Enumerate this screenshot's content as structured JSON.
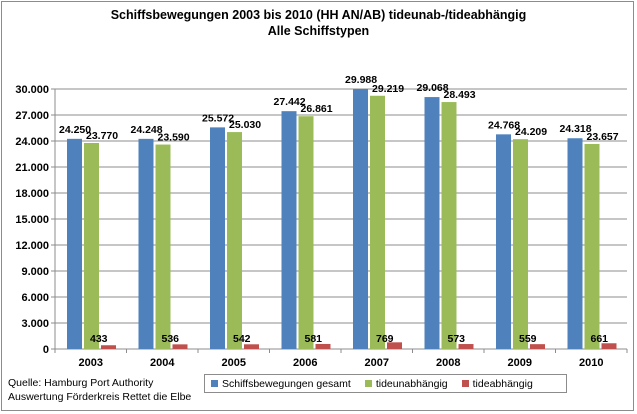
{
  "chart_data": {
    "type": "bar",
    "title": "Schiffsbewegungen  2003 bis 2010 (HH AN/AB) tideunab-/tideabhängig",
    "subtitle": "Alle Schiffstypen",
    "categories": [
      "2003",
      "2004",
      "2005",
      "2006",
      "2007",
      "2008",
      "2009",
      "2010"
    ],
    "series": [
      {
        "name": "Schiffsbewegungen gesamt",
        "color": "#4f81bd",
        "values": [
          24250,
          24248,
          25572,
          27442,
          29988,
          29068,
          24768,
          24318
        ],
        "labels": [
          "24.250",
          "24.248",
          "25.572",
          "27.442",
          "29.988",
          "29.068",
          "24.768",
          "24.318"
        ]
      },
      {
        "name": "tideunabhängig",
        "color": "#9bbb59",
        "values": [
          23770,
          23590,
          25030,
          26861,
          29219,
          28493,
          24209,
          23657
        ],
        "labels": [
          "23.770",
          "23.590",
          "25.030",
          "26.861",
          "29.219",
          "28.493",
          "24.209",
          "23.657"
        ]
      },
      {
        "name": "tideabhängig",
        "color": "#c0504d",
        "values": [
          433,
          536,
          542,
          581,
          769,
          573,
          559,
          661
        ],
        "labels": [
          "433",
          "536",
          "542",
          "581",
          "769",
          "573",
          "559",
          "661"
        ]
      }
    ],
    "ylim": [
      0,
      30000
    ],
    "yticks": [
      0,
      3000,
      6000,
      9000,
      12000,
      15000,
      18000,
      21000,
      24000,
      27000,
      30000
    ],
    "ytick_labels": [
      "0",
      "3.000",
      "6.000",
      "9.000",
      "12.000",
      "15.000",
      "18.000",
      "21.000",
      "24.000",
      "27.000",
      "30.000"
    ],
    "grid": true,
    "legend_position": "bottom"
  },
  "source": {
    "line1": "Quelle: Hamburg Port Authority",
    "line2": "Auswertung Förderkreis Rettet die Elbe"
  }
}
